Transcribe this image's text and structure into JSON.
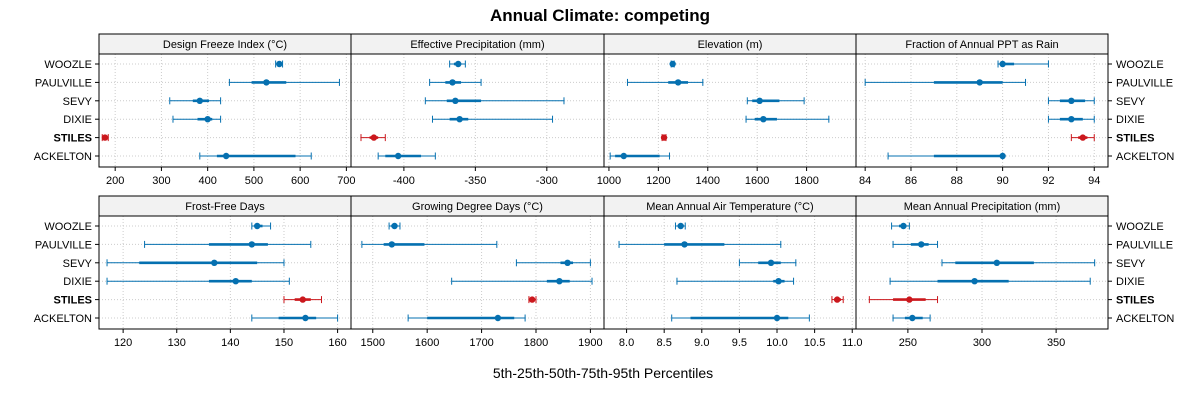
{
  "chart_data": {
    "type": "dot-whisker",
    "title": "Annual Climate: competing",
    "xlabel": "5th-25th-50th-75th-95th Percentiles",
    "rows": [
      "WOOZLE",
      "PAULVILLE",
      "SEVY",
      "DIXIE",
      "STILES",
      "ACKELTON"
    ],
    "highlight_row": "STILES",
    "colors": {
      "normal": "#0570b0",
      "highlight": "#cb181d"
    },
    "panels": [
      {
        "name": "Design Freeze Index (°C)",
        "xlim": [
          165,
          710
        ],
        "ticks": [
          200,
          300,
          400,
          500,
          600,
          700
        ],
        "tick_labels": [
          "200",
          "300",
          "400",
          "500",
          "600",
          "700"
        ],
        "data": [
          [
            547,
            550,
            555,
            558,
            562
          ],
          [
            447,
            495,
            527,
            570,
            685
          ],
          [
            318,
            368,
            383,
            403,
            428
          ],
          [
            325,
            378,
            400,
            410,
            428
          ],
          [
            172,
            175,
            178,
            181,
            185
          ],
          [
            383,
            420,
            440,
            590,
            624
          ]
        ]
      },
      {
        "name": "Effective Precipitation (mm)",
        "xlim": [
          -437,
          -260
        ],
        "ticks": [
          -400,
          -350,
          -300
        ],
        "tick_labels": [
          "-400",
          "-350",
          "-300"
        ],
        "data": [
          [
            -368,
            -365,
            -362,
            -360,
            -357
          ],
          [
            -382,
            -371,
            -366,
            -360,
            -346
          ],
          [
            -385,
            -370,
            -364,
            -346,
            -288
          ],
          [
            -380,
            -368,
            -361,
            -355,
            -296
          ],
          [
            -430,
            -424,
            -421,
            -418,
            -413
          ],
          [
            -418,
            -413,
            -404,
            -388,
            -378
          ]
        ]
      },
      {
        "name": "Elevation (m)",
        "xlim": [
          980,
          2000
        ],
        "ticks": [
          1000,
          1200,
          1400,
          1600,
          1800
        ],
        "tick_labels": [
          "1000",
          "1200",
          "1400",
          "1600",
          "1800"
        ],
        "data": [
          [
            1252,
            1255,
            1258,
            1261,
            1264
          ],
          [
            1075,
            1240,
            1280,
            1320,
            1380
          ],
          [
            1560,
            1580,
            1610,
            1690,
            1790
          ],
          [
            1555,
            1590,
            1625,
            1680,
            1890
          ],
          [
            1215,
            1219,
            1223,
            1227,
            1231
          ],
          [
            1005,
            1025,
            1060,
            1205,
            1245
          ]
        ]
      },
      {
        "name": "Fraction of Annual PPT as Rain",
        "xlim": [
          83.6,
          94.6
        ],
        "ticks": [
          84,
          86,
          88,
          90,
          92,
          94
        ],
        "tick_labels": [
          "84",
          "86",
          "88",
          "90",
          "92",
          "94"
        ],
        "data": [
          [
            89.8,
            90.0,
            90.0,
            90.5,
            92.0
          ],
          [
            84.0,
            87.0,
            89.0,
            90.0,
            91.0
          ],
          [
            92.0,
            92.5,
            93.0,
            93.6,
            94.0
          ],
          [
            92.0,
            92.5,
            93.0,
            93.5,
            94.0
          ],
          [
            93.0,
            93.3,
            93.5,
            93.7,
            94.0
          ],
          [
            85.0,
            87.0,
            90.0,
            90.0,
            90.0
          ]
        ]
      },
      {
        "name": "Frost-Free Days",
        "xlim": [
          115.5,
          162.5
        ],
        "ticks": [
          120,
          130,
          140,
          150,
          160
        ],
        "tick_labels": [
          "120",
          "130",
          "140",
          "150",
          "160"
        ],
        "data": [
          [
            144,
            144.5,
            145,
            146,
            147.5
          ],
          [
            124,
            136,
            144,
            147,
            155
          ],
          [
            117,
            123,
            137,
            145,
            150
          ],
          [
            117,
            136,
            141,
            144,
            151
          ],
          [
            150,
            152,
            153.5,
            155,
            157
          ],
          [
            144,
            149,
            154,
            156,
            160
          ]
        ]
      },
      {
        "name": "Growing Degree Days (°C)",
        "xlim": [
          1460,
          1925
        ],
        "ticks": [
          1500,
          1600,
          1700,
          1800,
          1900
        ],
        "tick_labels": [
          "1500",
          "1600",
          "1700",
          "1800",
          "1900"
        ],
        "data": [
          [
            1530,
            1534,
            1540,
            1545,
            1550
          ],
          [
            1480,
            1520,
            1535,
            1595,
            1728
          ],
          [
            1764,
            1845,
            1858,
            1868,
            1900
          ],
          [
            1645,
            1820,
            1843,
            1862,
            1903
          ],
          [
            1787,
            1790,
            1793,
            1796,
            1800
          ],
          [
            1565,
            1600,
            1730,
            1760,
            1780
          ]
        ]
      },
      {
        "name": "Mean Annual Air Temperature (°C)",
        "xlim": [
          7.7,
          11.05
        ],
        "ticks": [
          8.0,
          8.5,
          9.0,
          9.5,
          10.0,
          10.5,
          11.0
        ],
        "tick_labels": [
          "8.0",
          "8.5",
          "9.0",
          "9.5",
          "10.0",
          "10.5",
          "11.0"
        ],
        "data": [
          [
            8.65,
            8.68,
            8.72,
            8.75,
            8.78
          ],
          [
            7.9,
            8.5,
            8.77,
            9.3,
            10.05
          ],
          [
            9.5,
            9.75,
            9.92,
            10.05,
            10.25
          ],
          [
            8.67,
            9.95,
            10.02,
            10.1,
            10.22
          ],
          [
            10.73,
            10.76,
            10.8,
            10.85,
            10.88
          ],
          [
            8.6,
            8.85,
            10.0,
            10.15,
            10.43
          ]
        ]
      },
      {
        "name": "Mean Annual Precipitation (mm)",
        "xlim": [
          215,
          385
        ],
        "ticks": [
          250,
          300,
          350
        ],
        "tick_labels": [
          "250",
          "300",
          "350"
        ],
        "data": [
          [
            239,
            244,
            247,
            249,
            251
          ],
          [
            240,
            252,
            259,
            264,
            270
          ],
          [
            273,
            282,
            310,
            335,
            376
          ],
          [
            238,
            270,
            295,
            318,
            373
          ],
          [
            224,
            240,
            251,
            262,
            270
          ],
          [
            240,
            248,
            253,
            260,
            265
          ]
        ]
      }
    ]
  }
}
